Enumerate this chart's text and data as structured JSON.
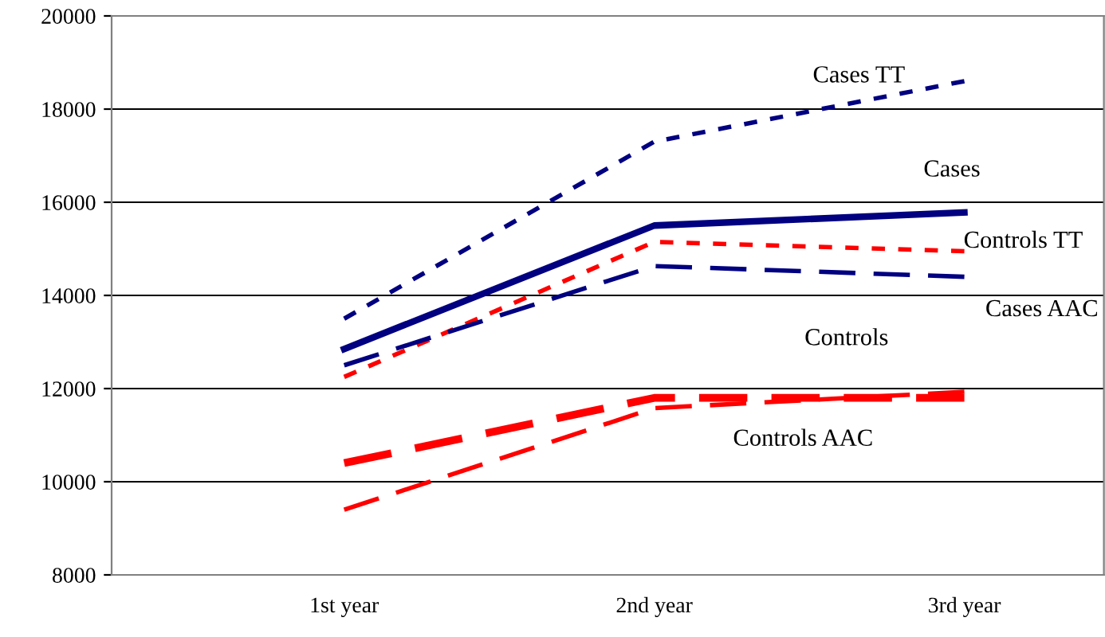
{
  "chart_data": {
    "type": "line",
    "categories": [
      "1st year",
      "2nd year",
      "3rd year"
    ],
    "ylim": [
      8000,
      20000
    ],
    "yticks": [
      8000,
      10000,
      12000,
      14000,
      16000,
      18000,
      20000
    ],
    "grid": "y",
    "legend": false,
    "marker": "none",
    "series": [
      {
        "name": "Cases TT",
        "color": "#000080",
        "line_style": "dotted",
        "values": [
          13500,
          17300,
          18600
        ]
      },
      {
        "name": "Cases",
        "color": "#000080",
        "line_style": "solid",
        "values": [
          12850,
          15500,
          15780
        ]
      },
      {
        "name": "Controls TT",
        "color": "#ff0000",
        "line_style": "dotted",
        "values": [
          12250,
          15150,
          14950
        ]
      },
      {
        "name": "Cases AAC",
        "color": "#000080",
        "line_style": "dashed",
        "values": [
          12500,
          14630,
          14400
        ]
      },
      {
        "name": "Controls",
        "color": "#ff0000",
        "line_style": "dashed",
        "values": [
          10400,
          11800,
          11800
        ]
      },
      {
        "name": "Controls AAC",
        "color": "#ff0000",
        "line_style": "dashed",
        "values": [
          9400,
          11580,
          11930
        ]
      }
    ]
  }
}
